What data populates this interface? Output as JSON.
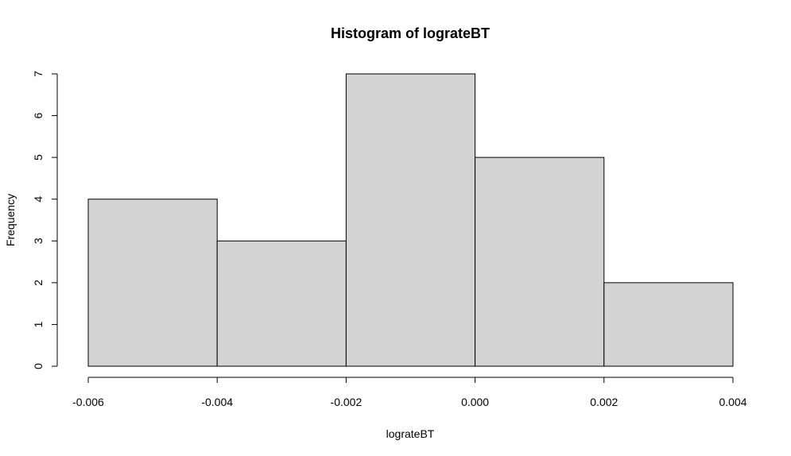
{
  "chart_data": {
    "type": "bar",
    "title": "Histogram of lograteBT",
    "xlabel": "lograteBT",
    "ylabel": "Frequency",
    "bins": [
      {
        "start": -0.006,
        "end": -0.004,
        "count": 4
      },
      {
        "start": -0.004,
        "end": -0.002,
        "count": 3
      },
      {
        "start": -0.002,
        "end": 0.0,
        "count": 7
      },
      {
        "start": 0.0,
        "end": 0.002,
        "count": 5
      },
      {
        "start": 0.002,
        "end": 0.004,
        "count": 2
      }
    ],
    "xlim": [
      -0.006,
      0.004
    ],
    "ylim": [
      0,
      7
    ],
    "x_ticks": [
      -0.006,
      -0.004,
      -0.002,
      0.0,
      0.002,
      0.004
    ],
    "x_tick_labels": [
      "-0.006",
      "-0.004",
      "-0.002",
      "0.000",
      "0.002",
      "0.004"
    ],
    "y_ticks": [
      0,
      1,
      2,
      3,
      4,
      5,
      6,
      7
    ],
    "y_tick_labels": [
      "0",
      "1",
      "2",
      "3",
      "4",
      "5",
      "6",
      "7"
    ],
    "bar_color": "#d3d3d3",
    "edge_color": "#000000",
    "grid": false
  }
}
